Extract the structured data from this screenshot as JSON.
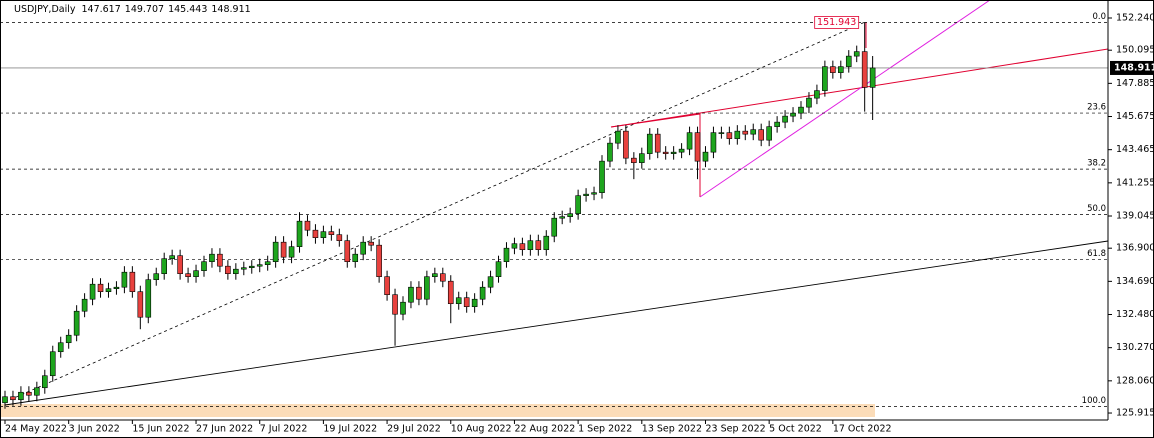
{
  "chart_data": {
    "type": "candlestick",
    "title": "USDJPY,Daily",
    "categories": [
      "24 May 2022",
      null,
      null,
      null,
      null,
      null,
      null,
      null,
      "3 Jun 2022",
      null,
      null,
      null,
      null,
      null,
      null,
      null,
      "15 Jun 2022",
      null,
      null,
      null,
      null,
      null,
      null,
      null,
      "27 Jun 2022",
      null,
      null,
      null,
      null,
      null,
      null,
      null,
      "7 Jul 2022",
      null,
      null,
      null,
      null,
      null,
      null,
      null,
      "19 Jul 2022",
      null,
      null,
      null,
      null,
      null,
      null,
      null,
      "29 Jul 2022",
      null,
      null,
      null,
      null,
      null,
      null,
      null,
      "10 Aug 2022",
      null,
      null,
      null,
      null,
      null,
      null,
      null,
      "22 Aug 2022",
      null,
      null,
      null,
      null,
      null,
      null,
      null,
      "1 Sep 2022",
      null,
      null,
      null,
      null,
      null,
      null,
      null,
      "13 Sep 2022",
      null,
      null,
      null,
      null,
      null,
      null,
      null,
      "23 Sep 2022",
      null,
      null,
      null,
      null,
      null,
      null,
      null,
      "5 Oct 2022",
      null,
      null,
      null,
      null,
      null,
      null,
      null,
      "17 Oct 2022",
      null,
      null,
      null,
      null,
      null
    ],
    "open": [
      126.6,
      127.0,
      126.8,
      127.3,
      127.1,
      127.6,
      128.4,
      130.0,
      130.6,
      131.1,
      132.7,
      133.5,
      134.5,
      134.0,
      134.2,
      134.3,
      135.3,
      134.0,
      132.3,
      134.8,
      135.2,
      136.2,
      136.4,
      135.2,
      135.0,
      135.4,
      136.0,
      136.5,
      135.7,
      135.2,
      135.5,
      135.6,
      135.7,
      135.8,
      136.0,
      137.3,
      136.3,
      137.0,
      138.7,
      138.1,
      137.6,
      138.0,
      137.8,
      137.4,
      136.0,
      136.5,
      137.3,
      137.1,
      135.0,
      133.8,
      132.5,
      133.3,
      134.3,
      133.5,
      135.0,
      135.2,
      134.7,
      133.2,
      133.6,
      133.0,
      133.5,
      134.3,
      135.0,
      136.0,
      136.9,
      137.2,
      136.8,
      137.4,
      136.8,
      137.7,
      138.9,
      139.0,
      139.2,
      140.4,
      140.5,
      140.6,
      142.7,
      143.9,
      144.7,
      142.9,
      142.6,
      143.2,
      144.5,
      143.3,
      143.2,
      143.3,
      143.5,
      144.6,
      142.7,
      143.3,
      144.6,
      144.6,
      144.2,
      144.7,
      144.5,
      144.8,
      144.1,
      145.0,
      145.3,
      145.7,
      145.9,
      146.3,
      146.9,
      147.4,
      149.0,
      148.6,
      149.0,
      149.7,
      150.0,
      147.617
    ],
    "high": [
      127.4,
      127.4,
      127.7,
      127.7,
      128.0,
      128.8,
      130.4,
      131.0,
      131.5,
      133.1,
      133.9,
      134.9,
      134.9,
      134.6,
      134.7,
      135.7,
      135.7,
      134.4,
      135.2,
      135.6,
      136.6,
      136.8,
      136.8,
      135.6,
      135.8,
      136.4,
      136.9,
      136.9,
      136.1,
      135.9,
      136.0,
      136.1,
      136.2,
      136.4,
      137.7,
      137.7,
      137.4,
      139.3,
      139.1,
      138.5,
      138.4,
      138.4,
      138.2,
      137.8,
      136.9,
      137.7,
      137.7,
      137.5,
      135.4,
      134.2,
      133.7,
      134.7,
      134.7,
      135.4,
      135.6,
      135.6,
      135.1,
      134.0,
      134.0,
      133.9,
      134.7,
      135.4,
      136.4,
      137.3,
      137.6,
      137.6,
      137.8,
      137.8,
      138.1,
      139.3,
      139.4,
      139.6,
      140.8,
      140.9,
      141.0,
      143.1,
      144.3,
      145.1,
      145.1,
      143.3,
      143.6,
      144.9,
      144.9,
      143.7,
      143.7,
      143.9,
      145.0,
      145.0,
      143.7,
      145.0,
      145.0,
      145.0,
      145.1,
      145.1,
      145.2,
      145.2,
      145.4,
      145.7,
      146.1,
      146.3,
      146.7,
      147.3,
      147.8,
      149.4,
      149.4,
      149.4,
      150.1,
      150.4,
      151.943,
      149.707
    ],
    "low": [
      126.2,
      126.4,
      126.4,
      126.7,
      126.7,
      127.2,
      128.0,
      129.6,
      130.2,
      130.7,
      132.3,
      133.1,
      133.6,
      133.6,
      133.8,
      133.9,
      133.6,
      131.5,
      131.9,
      134.4,
      134.8,
      135.8,
      134.8,
      134.6,
      134.6,
      135.0,
      135.6,
      135.3,
      134.8,
      134.8,
      135.1,
      135.2,
      135.3,
      135.4,
      135.6,
      135.9,
      135.9,
      136.6,
      137.7,
      137.2,
      137.2,
      137.4,
      137.0,
      135.6,
      135.6,
      136.1,
      136.7,
      134.6,
      133.4,
      130.4,
      132.1,
      132.9,
      133.1,
      133.1,
      134.6,
      134.3,
      131.9,
      132.8,
      132.6,
      132.6,
      133.1,
      133.9,
      134.6,
      135.6,
      136.5,
      136.4,
      136.4,
      136.4,
      136.4,
      137.3,
      138.5,
      138.6,
      138.8,
      140.0,
      140.1,
      140.2,
      142.3,
      143.5,
      142.5,
      141.5,
      142.2,
      142.8,
      142.9,
      142.8,
      142.8,
      142.9,
      143.1,
      141.5,
      142.3,
      142.9,
      144.2,
      143.8,
      143.8,
      144.1,
      144.1,
      143.7,
      143.7,
      144.6,
      144.9,
      145.3,
      145.5,
      145.9,
      146.5,
      147.0,
      148.2,
      148.2,
      148.6,
      149.3,
      146.0,
      145.443
    ],
    "close": [
      127.0,
      126.8,
      127.3,
      127.1,
      127.6,
      128.4,
      130.0,
      130.6,
      131.1,
      132.7,
      133.5,
      134.5,
      134.0,
      134.2,
      134.3,
      135.3,
      134.0,
      132.3,
      134.8,
      135.2,
      136.2,
      136.4,
      135.2,
      135.0,
      135.4,
      136.0,
      136.5,
      135.7,
      135.2,
      135.5,
      135.6,
      135.7,
      135.8,
      136.0,
      137.3,
      136.3,
      137.0,
      138.7,
      138.1,
      137.6,
      138.0,
      137.8,
      137.4,
      136.0,
      136.5,
      137.3,
      137.1,
      135.0,
      133.8,
      132.5,
      133.3,
      134.3,
      133.5,
      135.0,
      135.2,
      134.7,
      133.2,
      133.6,
      133.0,
      133.5,
      134.3,
      135.0,
      136.0,
      136.9,
      137.2,
      136.8,
      137.4,
      136.8,
      137.7,
      138.9,
      139.0,
      139.2,
      140.4,
      140.5,
      140.6,
      142.7,
      143.9,
      144.7,
      142.9,
      142.6,
      143.2,
      144.5,
      143.3,
      143.2,
      143.3,
      143.5,
      144.6,
      142.7,
      143.3,
      144.6,
      144.6,
      144.2,
      144.7,
      144.5,
      144.8,
      144.1,
      145.0,
      145.3,
      145.7,
      145.9,
      146.3,
      146.9,
      147.4,
      149.0,
      148.6,
      149.0,
      149.7,
      150.0,
      147.617,
      148.911
    ],
    "up_color": "#1ea51e",
    "down_color": "#e8413e",
    "ylim": [
      125.45,
      153.44
    ],
    "yticks": [
      {
        "value": 152.24,
        "label": "152.240"
      },
      {
        "value": 150.095,
        "label": "150.095"
      },
      {
        "value": 147.885,
        "label": "147.885"
      },
      {
        "value": 145.675,
        "label": "145.675"
      },
      {
        "value": 143.465,
        "label": "143.465"
      },
      {
        "value": 141.255,
        "label": "141.255"
      },
      {
        "value": 139.045,
        "label": "139.045"
      },
      {
        "value": 136.9,
        "label": "136.900"
      },
      {
        "value": 134.69,
        "label": "134.690"
      },
      {
        "value": 132.48,
        "label": "132.480"
      },
      {
        "value": 130.27,
        "label": "130.270"
      },
      {
        "value": 128.06,
        "label": "128.060"
      },
      {
        "value": 125.915,
        "label": "125.915"
      }
    ],
    "fibonacci": {
      "high": 151.943,
      "low": 126.36,
      "levels": [
        {
          "value": 0,
          "label": "0.0"
        },
        23.6,
        38.2,
        {
          "value": 50,
          "label": "50.0"
        },
        61.8,
        {
          "value": 100,
          "label": "100.0"
        }
      ]
    }
  }
}
